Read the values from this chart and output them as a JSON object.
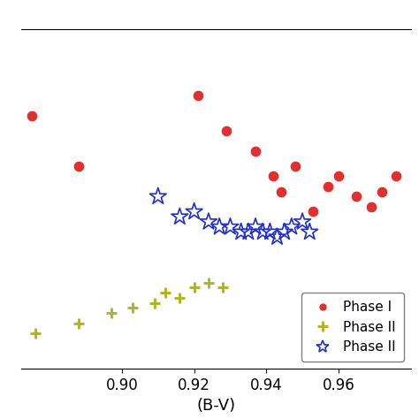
{
  "phase1_x": [
    0.875,
    0.888,
    0.921,
    0.929,
    0.937,
    0.942,
    0.944,
    0.948,
    0.953,
    0.957,
    0.96,
    0.965,
    0.969,
    0.972,
    0.976
  ],
  "phase1_y": [
    6.8,
    5.8,
    7.2,
    6.5,
    6.1,
    5.6,
    5.3,
    5.8,
    4.9,
    5.4,
    5.6,
    5.2,
    5.0,
    5.3,
    5.6
  ],
  "phase2_x": [
    0.876,
    0.888,
    0.897,
    0.903,
    0.909,
    0.912,
    0.916,
    0.92,
    0.924,
    0.928
  ],
  "phase2_y": [
    2.5,
    2.7,
    2.9,
    3.0,
    3.1,
    3.3,
    3.2,
    3.4,
    3.5,
    3.4
  ],
  "phase3_x": [
    0.91,
    0.916,
    0.92,
    0.924,
    0.927,
    0.93,
    0.933,
    0.935,
    0.937,
    0.939,
    0.941,
    0.943,
    0.945,
    0.947,
    0.95,
    0.952
  ],
  "phase3_y": [
    5.2,
    4.8,
    4.9,
    4.7,
    4.6,
    4.6,
    4.5,
    4.5,
    4.6,
    4.5,
    4.5,
    4.4,
    4.5,
    4.6,
    4.7,
    4.5
  ],
  "phase1_color": "#e03030",
  "phase2_color": "#b0b020",
  "phase3_color": "#2030cc",
  "xlabel": "(B-V)",
  "xticks": [
    0.9,
    0.92,
    0.94,
    0.96
  ],
  "xtick_labels": [
    "0.90",
    "0.92",
    "0.94",
    "0.96"
  ],
  "xlim": [
    0.872,
    0.98
  ],
  "ylim": [
    1.8,
    8.5
  ],
  "legend_labels": [
    "Phase I",
    "Phase II",
    "Phase II"
  ],
  "ms1": 55,
  "ms2": 80,
  "ms3": 80
}
